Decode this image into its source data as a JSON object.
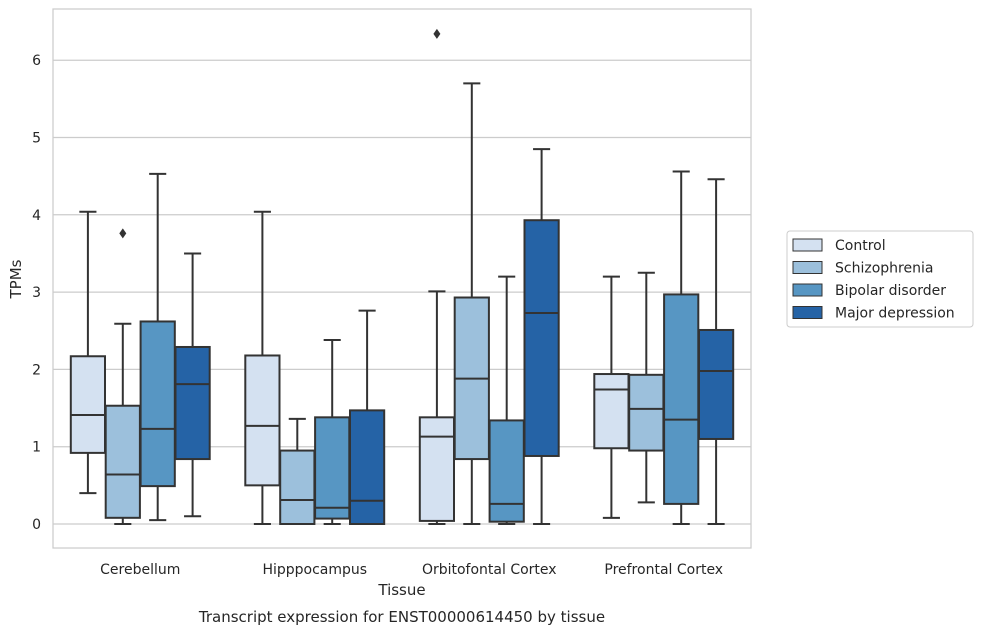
{
  "chart_data": {
    "type": "box",
    "caption": "Transcript expression for ENST00000614450 by tissue",
    "xlabel": "Tissue",
    "ylabel": "TPMs",
    "ylim": [
      -0.3,
      6.65
    ],
    "yticks": [
      0,
      1,
      2,
      3,
      4,
      5,
      6
    ],
    "grid": "horizontal",
    "legend_position": "right",
    "categories": [
      "Cerebellum",
      "Hipppocampus",
      "Orbitofontal Cortex",
      "Prefrontal Cortex"
    ],
    "series": [
      {
        "name": "Control",
        "color": "#d4e1f1",
        "boxes": [
          {
            "whislo": 0.4,
            "q1": 0.92,
            "med": 1.41,
            "q3": 2.17,
            "whishi": 4.04,
            "fliers": []
          },
          {
            "whislo": 0.0,
            "q1": 0.5,
            "med": 1.27,
            "q3": 2.18,
            "whishi": 4.04,
            "fliers": []
          },
          {
            "whislo": 0.0,
            "q1": 0.04,
            "med": 1.13,
            "q3": 1.38,
            "whishi": 3.01,
            "fliers": [
              6.34
            ]
          },
          {
            "whislo": 0.08,
            "q1": 0.98,
            "med": 1.74,
            "q3": 1.94,
            "whishi": 3.2,
            "fliers": []
          }
        ]
      },
      {
        "name": "Schizophrenia",
        "color": "#9cc0dc",
        "boxes": [
          {
            "whislo": 0.0,
            "q1": 0.08,
            "med": 0.64,
            "q3": 1.53,
            "whishi": 2.59,
            "fliers": [
              3.76
            ]
          },
          {
            "whislo": 0.0,
            "q1": 0.0,
            "med": 0.31,
            "q3": 0.95,
            "whishi": 1.36,
            "fliers": []
          },
          {
            "whislo": 0.0,
            "q1": 0.84,
            "med": 1.88,
            "q3": 2.93,
            "whishi": 5.7,
            "fliers": []
          },
          {
            "whislo": 0.28,
            "q1": 0.95,
            "med": 1.49,
            "q3": 1.93,
            "whishi": 3.25,
            "fliers": []
          }
        ]
      },
      {
        "name": "Bipolar disorder",
        "color": "#5796c3",
        "boxes": [
          {
            "whislo": 0.05,
            "q1": 0.49,
            "med": 1.23,
            "q3": 2.62,
            "whishi": 4.53,
            "fliers": []
          },
          {
            "whislo": 0.0,
            "q1": 0.07,
            "med": 0.21,
            "q3": 1.38,
            "whishi": 2.38,
            "fliers": []
          },
          {
            "whislo": 0.0,
            "q1": 0.03,
            "med": 0.26,
            "q3": 1.34,
            "whishi": 3.2,
            "fliers": []
          },
          {
            "whislo": 0.0,
            "q1": 0.26,
            "med": 1.35,
            "q3": 2.97,
            "whishi": 4.56,
            "fliers": []
          }
        ]
      },
      {
        "name": "Major depression",
        "color": "#2563a6",
        "boxes": [
          {
            "whislo": 0.1,
            "q1": 0.84,
            "med": 1.81,
            "q3": 2.29,
            "whishi": 3.5,
            "fliers": []
          },
          {
            "whislo": 0.0,
            "q1": 0.0,
            "med": 0.3,
            "q3": 1.47,
            "whishi": 2.76,
            "fliers": []
          },
          {
            "whislo": 0.0,
            "q1": 0.88,
            "med": 2.73,
            "q3": 3.93,
            "whishi": 4.85,
            "fliers": []
          },
          {
            "whislo": 0.0,
            "q1": 1.1,
            "med": 1.98,
            "q3": 2.51,
            "whishi": 4.46,
            "fliers": []
          }
        ]
      }
    ]
  }
}
